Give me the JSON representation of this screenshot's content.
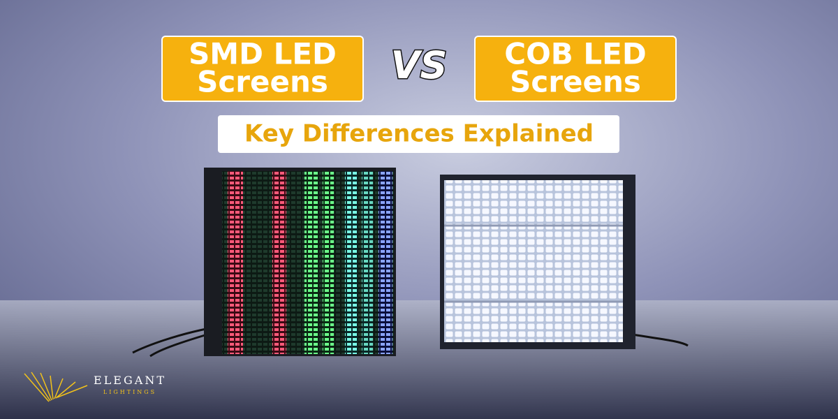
{
  "header": {
    "left_label": [
      "SMD LED",
      "Screens"
    ],
    "vs": "VS",
    "right_label": [
      "COB LED",
      "Screens"
    ],
    "subtitle": "Key Differences Explained"
  },
  "logo": {
    "name": "ELEGANT",
    "tagline": "LIGHTINGS"
  }
}
